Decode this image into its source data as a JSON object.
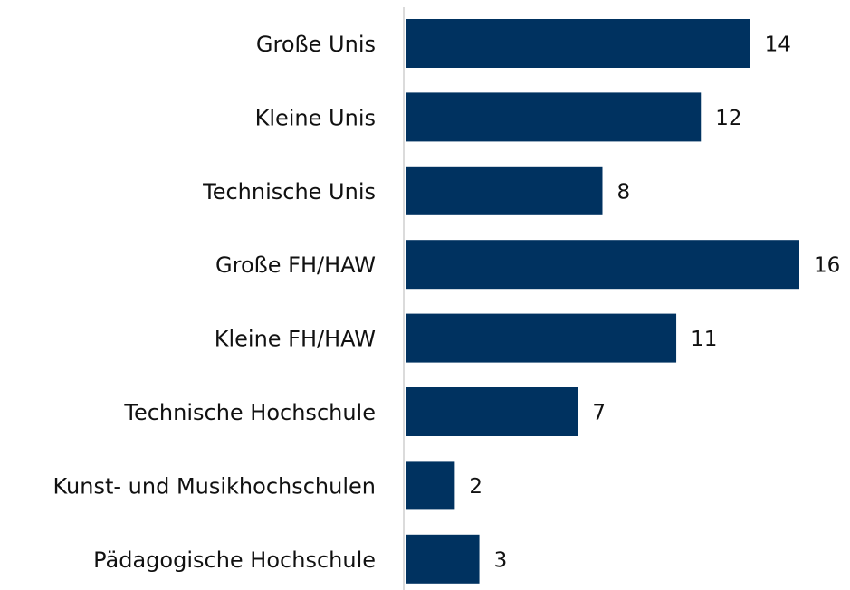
{
  "chart_data": {
    "type": "barh",
    "categories": [
      "Große Unis",
      "Kleine Unis",
      "Technische Unis",
      "Große FH/HAW",
      "Kleine FH/HAW",
      "Technische Hochschule",
      "Kunst- und Musikhochschulen",
      "Pädagogische Hochschule"
    ],
    "values": [
      14,
      12,
      8,
      16,
      11,
      7,
      2,
      3
    ],
    "color": "#003260"
  }
}
